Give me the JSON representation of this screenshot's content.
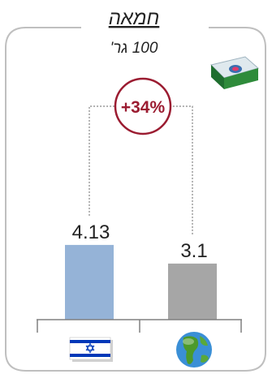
{
  "header": {
    "title": "חמאה",
    "subtitle": "100 גר'"
  },
  "chart_data": {
    "type": "bar",
    "categories": [
      "ישראל",
      "עולם"
    ],
    "values": [
      4.13,
      3.1
    ],
    "value_labels": [
      "4.13",
      "3.1"
    ],
    "category_icons": [
      "israel-flag-icon",
      "globe-icon"
    ],
    "ylim": [
      0,
      4.13
    ],
    "grid": false,
    "legend": "none",
    "change_label": "+34%"
  },
  "colors": {
    "bar_israel": "#95b3d7",
    "bar_world": "#a6a6a6",
    "accent": "#9b1c31",
    "frame": "#bfbfbf",
    "dotted_line": "#808080",
    "axis": "#808080",
    "flag_blue": "#0038b8",
    "package_green": "#2e8b3a",
    "globe_blue": "#3a8fd6",
    "globe_green": "#4c9a2a"
  },
  "icons": {
    "product": "butter-package-icon",
    "israel": "israel-flag-icon",
    "world": "globe-icon"
  }
}
